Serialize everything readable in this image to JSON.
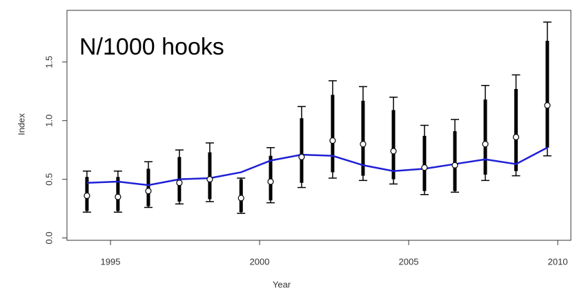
{
  "chart_data": {
    "type": "errorbar",
    "annotation": "N/1000 hooks",
    "xlabel": "Year",
    "ylabel": "Index",
    "x": [
      1994.21,
      1995.25,
      1996.27,
      1997.31,
      1998.33,
      1999.38,
      2000.37,
      2001.41,
      2002.45,
      2003.47,
      2004.49,
      2005.53,
      2006.55,
      2007.57,
      2008.6,
      2009.65
    ],
    "values": [
      0.36,
      0.35,
      0.4,
      0.47,
      0.5,
      0.34,
      0.48,
      0.69,
      0.83,
      0.8,
      0.74,
      0.6,
      0.62,
      0.8,
      0.86,
      1.13
    ],
    "outer_low": [
      0.22,
      0.22,
      0.26,
      0.29,
      0.31,
      0.21,
      0.3,
      0.43,
      0.51,
      0.49,
      0.46,
      0.37,
      0.39,
      0.49,
      0.53,
      0.7
    ],
    "outer_high": [
      0.57,
      0.57,
      0.65,
      0.75,
      0.81,
      0.51,
      0.77,
      1.12,
      1.34,
      1.29,
      1.2,
      0.96,
      1.01,
      1.3,
      1.39,
      1.84
    ],
    "inner_low": [
      0.23,
      0.23,
      0.27,
      0.31,
      0.33,
      0.22,
      0.32,
      0.47,
      0.56,
      0.53,
      0.5,
      0.4,
      0.4,
      0.54,
      0.57,
      0.77
    ],
    "inner_high": [
      0.52,
      0.52,
      0.59,
      0.69,
      0.73,
      0.5,
      0.7,
      1.02,
      1.22,
      1.17,
      1.09,
      0.87,
      0.91,
      1.18,
      1.27,
      1.68
    ],
    "fit": [
      0.47,
      0.48,
      0.45,
      0.5,
      0.51,
      0.56,
      0.66,
      0.71,
      0.7,
      0.62,
      0.57,
      0.59,
      0.63,
      0.67,
      0.63,
      0.77
    ],
    "fit_color": "#1f1fd6",
    "bar_color": "#000000",
    "xlim": [
      1993.54,
      2010.44
    ],
    "ylim": [
      -0.02,
      1.94
    ],
    "xticks": [
      1995,
      2000,
      2005,
      2010
    ],
    "yticks": [
      {
        "value": 0,
        "label": "0.0"
      },
      {
        "value": 0.5,
        "label": "0.5"
      },
      {
        "value": 1,
        "label": "1.0"
      },
      {
        "value": 1.5,
        "label": "1.5"
      }
    ]
  }
}
